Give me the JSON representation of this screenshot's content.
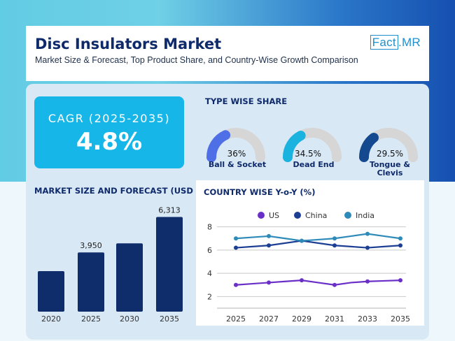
{
  "header": {
    "title": "Disc Insulators Market",
    "subtitle": "Market Size & Forecast, Top Product Share, and Country-Wise Growth Comparison",
    "logo_fact": "Fact",
    "logo_mr": ".MR"
  },
  "cagr": {
    "label": "CAGR (2025-2035)",
    "value": "4.8%"
  },
  "type_share": {
    "title": "TYPE WISE SHARE",
    "items": [
      {
        "name": "Ball & Socket",
        "pct_label": "36%",
        "share": 36,
        "color": "#4f6fe6"
      },
      {
        "name": "Dead End",
        "pct_label": "34.5%",
        "share": 34.5,
        "color": "#1ab3df"
      },
      {
        "name": "Tongue & Clevis",
        "pct_label": "29.5%",
        "share": 29.5,
        "color": "#15498f"
      }
    ],
    "track_color": "#d6d6d6"
  },
  "market_size": {
    "title": "MARKET SIZE AND FORECAST (USD MN)"
  },
  "country_growth": {
    "title": "COUNTRY WISE Y-o-Y (%)"
  },
  "chart_data": [
    {
      "type": "bar",
      "categories": [
        "2020",
        "2025",
        "2030",
        "2035"
      ],
      "values": [
        2700,
        3950,
        4550,
        6313
      ],
      "data_labels": [
        "",
        "3,950",
        "",
        "6,313"
      ],
      "color": "#0f2d6b",
      "ylim": [
        0,
        6800
      ]
    },
    {
      "type": "line",
      "x": [
        "2025",
        "2026",
        "2027",
        "2028",
        "2029",
        "2030",
        "2031",
        "2032",
        "2033",
        "2034",
        "2035"
      ],
      "x_ticks": [
        "2025",
        "2027",
        "2029",
        "2031",
        "2033",
        "2035"
      ],
      "y_ticks": [
        "2",
        "4",
        "6",
        "8"
      ],
      "ylim": [
        1,
        9
      ],
      "series": [
        {
          "name": "US",
          "color": "#6a2fc7",
          "values": [
            3.0,
            3.1,
            3.2,
            3.3,
            3.4,
            3.2,
            3.0,
            3.2,
            3.3,
            3.35,
            3.4
          ]
        },
        {
          "name": "China",
          "color": "#1c3f94",
          "values": [
            6.2,
            6.3,
            6.4,
            6.6,
            6.8,
            6.6,
            6.4,
            6.3,
            6.2,
            6.3,
            6.4
          ]
        },
        {
          "name": "India",
          "color": "#2e8ab8",
          "values": [
            7.0,
            7.1,
            7.2,
            7.0,
            6.8,
            6.9,
            7.0,
            7.2,
            7.4,
            7.2,
            7.0
          ]
        }
      ]
    }
  ]
}
